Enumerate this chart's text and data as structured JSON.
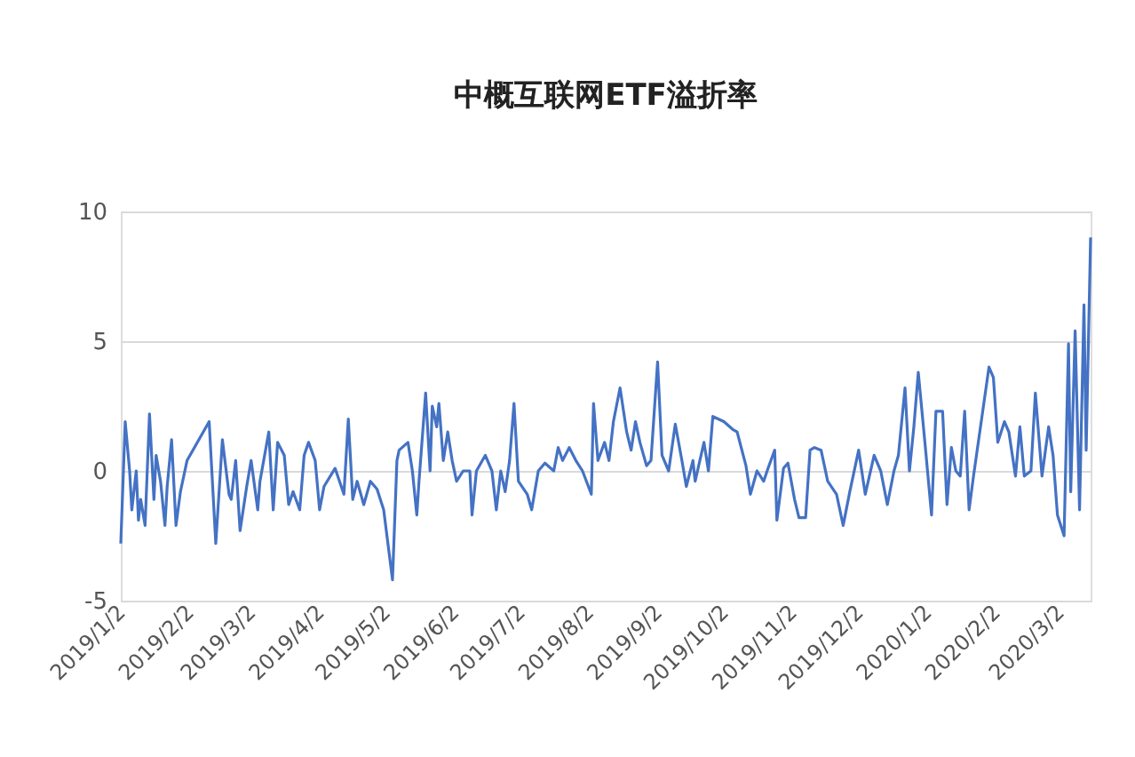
{
  "chart_data": {
    "type": "line",
    "title": "中概互联网ETF溢折率",
    "x": [
      "2019-01-02",
      "2019-01-04",
      "2019-01-06",
      "2019-01-07",
      "2019-01-09",
      "2019-01-10",
      "2019-01-11",
      "2019-01-13",
      "2019-01-15",
      "2019-01-17",
      "2019-01-18",
      "2019-01-20",
      "2019-01-22",
      "2019-01-23",
      "2019-01-25",
      "2019-01-27",
      "2019-01-29",
      "2019-02-01",
      "2019-02-11",
      "2019-02-14",
      "2019-02-17",
      "2019-02-20",
      "2019-02-21",
      "2019-02-23",
      "2019-02-25",
      "2019-02-28",
      "2019-03-02",
      "2019-03-05",
      "2019-03-06",
      "2019-03-10",
      "2019-03-12",
      "2019-03-14",
      "2019-03-17",
      "2019-03-19",
      "2019-03-21",
      "2019-03-24",
      "2019-03-26",
      "2019-03-28",
      "2019-03-31",
      "2019-04-02",
      "2019-04-04",
      "2019-04-09",
      "2019-04-13",
      "2019-04-15",
      "2019-04-17",
      "2019-04-19",
      "2019-04-22",
      "2019-04-25",
      "2019-04-28",
      "2019-05-01",
      "2019-05-05",
      "2019-05-07",
      "2019-05-08",
      "2019-05-12",
      "2019-05-14",
      "2019-05-16",
      "2019-05-17",
      "2019-05-20",
      "2019-05-22",
      "2019-05-23",
      "2019-05-25",
      "2019-05-26",
      "2019-05-28",
      "2019-05-30",
      "2019-06-01",
      "2019-06-03",
      "2019-06-06",
      "2019-06-09",
      "2019-06-10",
      "2019-06-12",
      "2019-06-16",
      "2019-06-19",
      "2019-06-21",
      "2019-06-23",
      "2019-06-25",
      "2019-06-27",
      "2019-06-29",
      "2019-07-01",
      "2019-07-05",
      "2019-07-07",
      "2019-07-10",
      "2019-07-13",
      "2019-07-17",
      "2019-07-19",
      "2019-07-21",
      "2019-07-24",
      "2019-07-27",
      "2019-07-30",
      "2019-08-03",
      "2019-08-04",
      "2019-08-06",
      "2019-08-09",
      "2019-08-11",
      "2019-08-13",
      "2019-08-16",
      "2019-08-19",
      "2019-08-21",
      "2019-08-23",
      "2019-08-25",
      "2019-08-28",
      "2019-08-30",
      "2019-09-02",
      "2019-09-04",
      "2019-09-07",
      "2019-09-10",
      "2019-09-13",
      "2019-09-15",
      "2019-09-18",
      "2019-09-19",
      "2019-09-23",
      "2019-09-25",
      "2019-09-27",
      "2019-10-02",
      "2019-10-06",
      "2019-10-08",
      "2019-10-12",
      "2019-10-14",
      "2019-10-17",
      "2019-10-20",
      "2019-10-22",
      "2019-10-25",
      "2019-10-26",
      "2019-10-29",
      "2019-10-31",
      "2019-11-03",
      "2019-11-05",
      "2019-11-08",
      "2019-11-10",
      "2019-11-12",
      "2019-11-15",
      "2019-11-18",
      "2019-11-22",
      "2019-11-25",
      "2019-11-28",
      "2019-12-02",
      "2019-12-05",
      "2019-12-09",
      "2019-12-12",
      "2019-12-15",
      "2019-12-18",
      "2019-12-20",
      "2019-12-23",
      "2019-12-25",
      "2019-12-27",
      "2019-12-29",
      "2020-01-01",
      "2020-01-04",
      "2020-01-06",
      "2020-01-09",
      "2020-01-11",
      "2020-01-13",
      "2020-01-15",
      "2020-01-17",
      "2020-01-19",
      "2020-01-21",
      "2020-01-23",
      "2020-01-30",
      "2020-02-01",
      "2020-02-03",
      "2020-02-06",
      "2020-02-08",
      "2020-02-11",
      "2020-02-13",
      "2020-02-15",
      "2020-02-18",
      "2020-02-20",
      "2020-02-23",
      "2020-02-26",
      "2020-02-28",
      "2020-03-01",
      "2020-03-04",
      "2020-03-06",
      "2020-03-07",
      "2020-03-09",
      "2020-03-11",
      "2020-03-13",
      "2020-03-14",
      "2020-03-16"
    ],
    "series": [
      {
        "color": "#4472c4",
        "values": [
          -2.8,
          1.9,
          0.0,
          -1.5,
          0.0,
          -1.9,
          -1.1,
          -2.1,
          2.2,
          -1.1,
          0.6,
          -0.4,
          -2.1,
          -0.6,
          1.2,
          -2.1,
          -0.8,
          0.4,
          1.9,
          -2.8,
          1.2,
          -0.9,
          -1.1,
          0.4,
          -2.3,
          -0.6,
          0.4,
          -1.5,
          -0.4,
          1.5,
          -1.5,
          1.1,
          0.6,
          -1.3,
          -0.8,
          -1.5,
          0.6,
          1.1,
          0.4,
          -1.5,
          -0.6,
          0.1,
          -0.9,
          2.0,
          -1.1,
          -0.4,
          -1.3,
          -0.4,
          -0.7,
          -1.5,
          -4.2,
          0.4,
          0.8,
          1.1,
          0.0,
          -1.7,
          -0.4,
          3.0,
          0.0,
          2.5,
          1.7,
          2.6,
          0.4,
          1.5,
          0.4,
          -0.4,
          0.0,
          0.0,
          -1.7,
          0.0,
          0.6,
          0.0,
          -1.5,
          0.0,
          -0.8,
          0.4,
          2.6,
          -0.4,
          -0.9,
          -1.5,
          0.0,
          0.3,
          0.0,
          0.9,
          0.4,
          0.9,
          0.4,
          0.0,
          -0.9,
          2.6,
          0.4,
          1.1,
          0.4,
          1.9,
          3.2,
          1.5,
          0.8,
          1.9,
          1.1,
          0.2,
          0.4,
          4.2,
          0.6,
          0.0,
          1.8,
          0.4,
          -0.6,
          0.4,
          -0.4,
          1.1,
          0.0,
          2.1,
          1.9,
          1.6,
          1.5,
          0.2,
          -0.9,
          0.0,
          -0.4,
          0.1,
          0.8,
          -1.9,
          0.1,
          0.3,
          -1.1,
          -1.8,
          -1.8,
          0.8,
          0.9,
          0.8,
          -0.4,
          -0.9,
          -2.1,
          -0.8,
          0.8,
          -0.9,
          0.6,
          0.0,
          -1.3,
          0.0,
          0.6,
          3.2,
          0.0,
          1.7,
          3.8,
          1.1,
          -1.7,
          2.3,
          2.3,
          -1.3,
          0.9,
          0.0,
          -0.2,
          2.3,
          -1.5,
          -0.2,
          4.0,
          3.6,
          1.1,
          1.9,
          1.5,
          -0.2,
          1.7,
          -0.2,
          0.0,
          3.0,
          -0.2,
          1.7,
          0.6,
          -1.7,
          -2.5,
          4.9,
          -0.8,
          5.4,
          -1.5,
          6.4,
          0.8,
          9.0
        ]
      }
    ],
    "xlim": [
      "2019-01-02",
      "2020-03-16"
    ],
    "xticks": [
      {
        "value": "2019-01-02",
        "label": "2019/1/2"
      },
      {
        "value": "2019-02-02",
        "label": "2019/2/2"
      },
      {
        "value": "2019-03-02",
        "label": "2019/3/2"
      },
      {
        "value": "2019-04-02",
        "label": "2019/4/2"
      },
      {
        "value": "2019-05-02",
        "label": "2019/5/2"
      },
      {
        "value": "2019-06-02",
        "label": "2019/6/2"
      },
      {
        "value": "2019-07-02",
        "label": "2019/7/2"
      },
      {
        "value": "2019-08-02",
        "label": "2019/8/2"
      },
      {
        "value": "2019-09-02",
        "label": "2019/9/2"
      },
      {
        "value": "2019-10-02",
        "label": "2019/10/2"
      },
      {
        "value": "2019-11-02",
        "label": "2019/11/2"
      },
      {
        "value": "2019-12-02",
        "label": "2019/12/2"
      },
      {
        "value": "2020-01-02",
        "label": "2020/1/2"
      },
      {
        "value": "2020-02-02",
        "label": "2020/2/2"
      },
      {
        "value": "2020-03-02",
        "label": "2020/3/2"
      }
    ],
    "ylim": [
      -5,
      10
    ],
    "yticks": [
      -5,
      0,
      5,
      10
    ],
    "grid": "y",
    "legend": false,
    "marker": "none",
    "line_style": "solid"
  }
}
